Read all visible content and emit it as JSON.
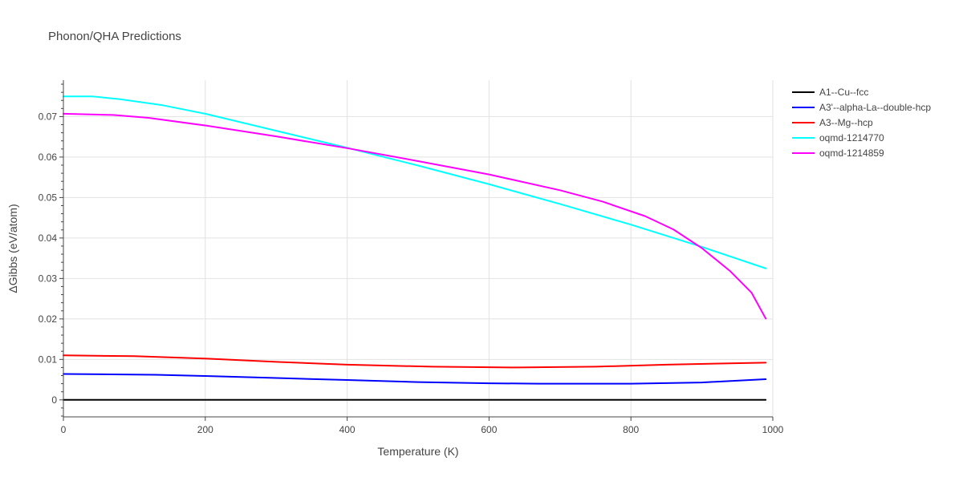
{
  "chart_data": {
    "type": "line",
    "title": "Phonon/QHA Predictions",
    "xlabel": "Temperature (K)",
    "ylabel": "ΔGibbs (eV/atom)",
    "xlim": [
      0,
      1000
    ],
    "ylim": [
      -0.0042,
      0.079
    ],
    "x_ticks": [
      0,
      200,
      400,
      600,
      800,
      1000
    ],
    "y_ticks": [
      0,
      0.01,
      0.02,
      0.03,
      0.04,
      0.05,
      0.06,
      0.07
    ],
    "x_tick_labels": [
      "0",
      "200",
      "400",
      "600",
      "800",
      "1000"
    ],
    "y_tick_labels": [
      "0",
      "0.01",
      "0.02",
      "0.03",
      "0.04",
      "0.05",
      "0.06",
      "0.07"
    ],
    "grid": true,
    "legend_position": "top-right",
    "series": [
      {
        "name": "A1--Cu--fcc",
        "color": "#000000",
        "x": [
          0,
          990
        ],
        "y": [
          0,
          0
        ]
      },
      {
        "name": "A3'--alpha-La--double-hcp",
        "color": "#0000ff",
        "x": [
          0,
          130,
          200,
          300,
          400,
          500,
          600,
          670,
          750,
          800,
          900,
          990
        ],
        "y": [
          0.0064,
          0.0062,
          0.0059,
          0.0054,
          0.0049,
          0.0044,
          0.0041,
          0.004,
          0.004,
          0.004,
          0.0043,
          0.0051
        ]
      },
      {
        "name": "A3--Mg--hcp",
        "color": "#ff0000",
        "x": [
          0,
          100,
          200,
          300,
          400,
          520,
          640,
          750,
          850,
          990
        ],
        "y": [
          0.011,
          0.0108,
          0.0102,
          0.0094,
          0.0087,
          0.0082,
          0.008,
          0.0082,
          0.0087,
          0.0092
        ]
      },
      {
        "name": "oqmd-1214770",
        "color": "#00ffff",
        "x": [
          0,
          40,
          80,
          140,
          200,
          300,
          400,
          500,
          600,
          700,
          800,
          900,
          990
        ],
        "y": [
          0.075,
          0.075,
          0.0743,
          0.0728,
          0.0707,
          0.0665,
          0.0623,
          0.0579,
          0.0533,
          0.0484,
          0.0433,
          0.0378,
          0.0325
        ]
      },
      {
        "name": "oqmd-1214859",
        "color": "#ff00ff",
        "x": [
          0,
          70,
          120,
          200,
          300,
          400,
          500,
          600,
          700,
          760,
          820,
          860,
          900,
          940,
          970,
          990
        ],
        "y": [
          0.0707,
          0.0704,
          0.0697,
          0.0678,
          0.0651,
          0.0622,
          0.059,
          0.0557,
          0.0518,
          0.049,
          0.0454,
          0.0421,
          0.0375,
          0.0318,
          0.0265,
          0.0201
        ]
      }
    ]
  }
}
